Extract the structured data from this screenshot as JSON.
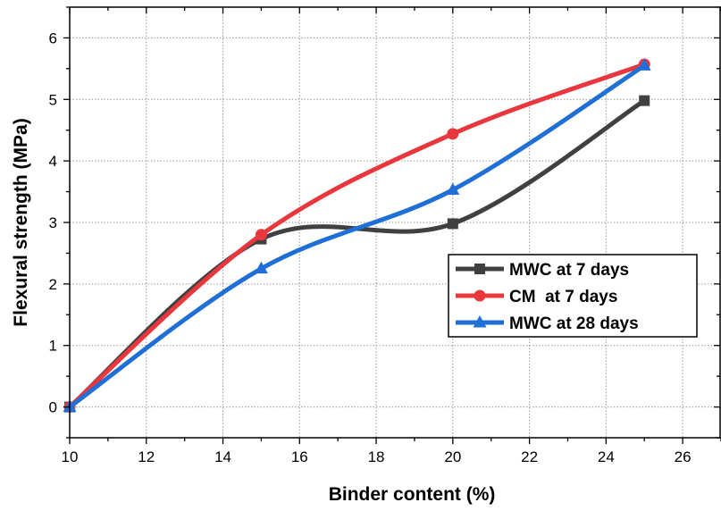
{
  "chart_data": {
    "type": "line",
    "xlabel": "Binder content (%)",
    "ylabel": "Flexural strength (MPa)",
    "xlim": [
      10,
      27
    ],
    "ylim": [
      -0.5,
      6.5
    ],
    "xticks": [
      10,
      12,
      14,
      16,
      18,
      20,
      22,
      24,
      26
    ],
    "yticks": [
      0,
      1,
      2,
      3,
      4,
      5,
      6
    ],
    "grid": true,
    "legend_position": "center-right",
    "series": [
      {
        "name": "MWC at 7 days",
        "color": "#404040",
        "marker": "square",
        "x": [
          10,
          15,
          20,
          25
        ],
        "values": [
          0,
          2.73,
          2.98,
          4.98
        ]
      },
      {
        "name": "CM  at 7 days",
        "color": "#e8383d",
        "marker": "circle",
        "x": [
          10,
          15,
          20,
          25
        ],
        "values": [
          0,
          2.8,
          4.44,
          5.57
        ]
      },
      {
        "name": "MWC at 28 days",
        "color": "#1f6fd6",
        "marker": "triangle",
        "x": [
          10,
          15,
          20,
          25
        ],
        "values": [
          0,
          2.25,
          3.53,
          5.55
        ]
      }
    ]
  }
}
